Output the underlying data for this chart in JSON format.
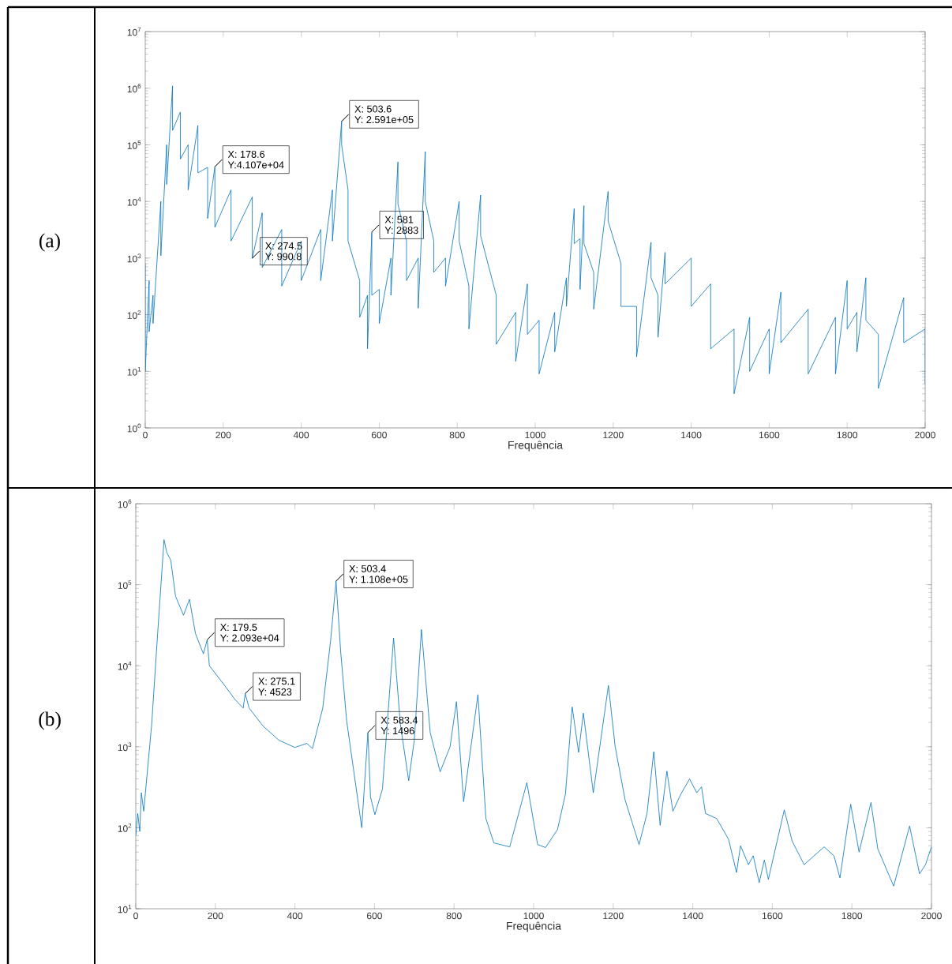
{
  "chart_data": [
    {
      "type": "line",
      "title": "(a)",
      "xlabel": "Frequência",
      "log": "y",
      "marker": "none",
      "xlim": [
        0,
        2000
      ],
      "ylim": [
        1,
        10000000
      ],
      "xticks": [
        0,
        200,
        400,
        600,
        800,
        1000,
        1200,
        1400,
        1600,
        1800,
        2000
      ],
      "yticks": [
        {
          "value": 1,
          "label": "10$^{0}$"
        },
        {
          "value": 10,
          "label": "10$^{1}$"
        },
        {
          "value": 100,
          "label": "10$^{2}$"
        },
        {
          "value": 1000,
          "label": "10$^{3}$"
        },
        {
          "value": 10000,
          "label": "10$^{4}$"
        },
        {
          "value": 100000,
          "label": "10$^{5}$"
        },
        {
          "value": 1000000,
          "label": "10$^{6}$"
        },
        {
          "value": 10000000,
          "label": "10$^{7}$"
        }
      ],
      "x": [
        0,
        0,
        10,
        10,
        20,
        20,
        40,
        40,
        55,
        55,
        70,
        70,
        90,
        90,
        110,
        110,
        135,
        135,
        160,
        160,
        178.6,
        178.6,
        220,
        220,
        274.5,
        274.5,
        300,
        300,
        350,
        350,
        400,
        400,
        450,
        450,
        480,
        480,
        503.6,
        503.6,
        520,
        520,
        550,
        550,
        570,
        570,
        581,
        581,
        600,
        600,
        630,
        630,
        648,
        648,
        670,
        670,
        700,
        700,
        718,
        718,
        740,
        740,
        770,
        770,
        805,
        805,
        830,
        830,
        860,
        860,
        900,
        900,
        950,
        950,
        980,
        980,
        1010,
        1010,
        1050,
        1050,
        1080,
        1080,
        1100,
        1100,
        1115,
        1115,
        1125,
        1125,
        1150,
        1150,
        1187,
        1187,
        1220,
        1220,
        1260,
        1260,
        1297,
        1297,
        1315,
        1315,
        1333,
        1333,
        1400,
        1400,
        1450,
        1450,
        1510,
        1510,
        1550,
        1550,
        1600,
        1600,
        1630,
        1630,
        1700,
        1700,
        1770,
        1770,
        1800,
        1800,
        1825,
        1825,
        1848,
        1848,
        1880,
        1880,
        1945,
        1945,
        2000,
        2000
      ],
      "series": [
        {
          "color": "#0072bd",
          "values": [
            800,
            10,
            400,
            50,
            220,
            70,
            10000,
            1100,
            100000,
            20000,
            1100000,
            180000,
            380000,
            56000,
            100000,
            16000,
            220000,
            32000,
            40000,
            5000,
            41070,
            3500,
            16000,
            2000,
            12000,
            990.8,
            6300,
            680,
            3200,
            320,
            2000,
            400,
            3200,
            400,
            16000,
            2000,
            259100,
            100000,
            16000,
            2000,
            400,
            90,
            220,
            25,
            2883,
            220,
            280,
            70,
            1000,
            220,
            50000,
            9000,
            2000,
            400,
            1000,
            130,
            76000,
            10000,
            2000,
            560,
            1000,
            320,
            10000,
            2000,
            320,
            56,
            13000,
            2500,
            220,
            30,
            110,
            15,
            350,
            45,
            80,
            9,
            110,
            22,
            450,
            140,
            7500,
            1800,
            2200,
            280,
            8400,
            1800,
            560,
            125,
            15000,
            4500,
            800,
            140,
            140,
            18,
            1900,
            450,
            220,
            40,
            1260,
            350,
            1000,
            140,
            350,
            25,
            56,
            4,
            90,
            10,
            56,
            9,
            250,
            32,
            125,
            9,
            90,
            9,
            400,
            56,
            110,
            22,
            450,
            80,
            45,
            5,
            200,
            32,
            56,
            6
          ]
        }
      ],
      "annotations": [
        {
          "text": "X: 178.6",
          "x": 178.6,
          "y": 41070
        },
        {
          "text": "Y:4.107e+04",
          "x": 178.6,
          "y": 41070
        },
        {
          "text": "X: 274.5",
          "x": 274.5,
          "y": 990.8
        },
        {
          "text": "Y: 990.8",
          "x": 274.5,
          "y": 990.8
        },
        {
          "text": "X: 503.6",
          "x": 503.6,
          "y": 259100
        },
        {
          "text": "Y: 2.591e+05",
          "x": 503.6,
          "y": 259100
        },
        {
          "text": "X: 581",
          "x": 581,
          "y": 2883
        },
        {
          "text": "Y: 2883",
          "x": 581,
          "y": 2883
        }
      ]
    },
    {
      "type": "line",
      "title": "(b)",
      "xlabel": "Frequência",
      "log": "y",
      "marker": "none",
      "xlim": [
        0,
        2000
      ],
      "ylim": [
        10,
        1000000
      ],
      "xticks": [
        0,
        200,
        400,
        600,
        800,
        1000,
        1200,
        1400,
        1600,
        1800,
        2000
      ],
      "yticks": [
        {
          "value": 10,
          "label": "10$^{1}$"
        },
        {
          "value": 100,
          "label": "10$^{2}$"
        },
        {
          "value": 1000,
          "label": "10$^{3}$"
        },
        {
          "value": 10000,
          "label": "10$^{4}$"
        },
        {
          "value": 100000,
          "label": "10$^{5}$"
        },
        {
          "value": 1000000,
          "label": "10$^{6}$"
        }
      ],
      "x": [
        0,
        5,
        10,
        14,
        20,
        40,
        55,
        71,
        78,
        88,
        100,
        120,
        135,
        150,
        170,
        179.5,
        185,
        220,
        250,
        270,
        275.1,
        285,
        320,
        360,
        400,
        430,
        444,
        470,
        490,
        503.4,
        515,
        530,
        568,
        583.4,
        590,
        601,
        620,
        648,
        665,
        686,
        700,
        718,
        740,
        765,
        790,
        806,
        824,
        860,
        880,
        900,
        940,
        983,
        1010,
        1030,
        1060,
        1080,
        1097,
        1113,
        1125,
        1150,
        1188,
        1205,
        1230,
        1265,
        1285,
        1302,
        1318,
        1335,
        1350,
        1370,
        1392,
        1410,
        1422,
        1432,
        1460,
        1490,
        1510,
        1520,
        1540,
        1552,
        1567,
        1580,
        1590,
        1630,
        1650,
        1680,
        1730,
        1755,
        1770,
        1797,
        1818,
        1848,
        1865,
        1905,
        1945,
        1970,
        1985,
        2000
      ],
      "series": [
        {
          "color": "#0072bd",
          "values": [
            80,
            150,
            90,
            270,
            160,
            1900,
            25000,
            360000,
            250000,
            200000,
            72000,
            42000,
            66000,
            25000,
            14000,
            20930,
            10000,
            6000,
            3800,
            3000,
            4523,
            3000,
            1800,
            1200,
            980,
            1100,
            950,
            3000,
            21000,
            110800,
            15000,
            2100,
            100,
            1496,
            240,
            145,
            300,
            22000,
            1900,
            380,
            1200,
            28000,
            1500,
            490,
            1000,
            3600,
            210,
            4400,
            130,
            65,
            58,
            360,
            62,
            57,
            95,
            260,
            3100,
            850,
            2600,
            270,
            5700,
            1000,
            220,
            62,
            150,
            870,
            107,
            500,
            160,
            260,
            400,
            270,
            320,
            150,
            130,
            72,
            28,
            60,
            35,
            45,
            21,
            40,
            23,
            166,
            68,
            35,
            58,
            45,
            24,
            195,
            50,
            205,
            55,
            19,
            105,
            27,
            35,
            58
          ]
        }
      ],
      "annotations": [
        {
          "text": "X: 179.5",
          "x": 179.5,
          "y": 20930
        },
        {
          "text": "Y: 2.093e+04",
          "x": 179.5,
          "y": 20930
        },
        {
          "text": "X: 275.1",
          "x": 275.1,
          "y": 4523
        },
        {
          "text": "Y: 4523",
          "x": 275.1,
          "y": 4523
        },
        {
          "text": "X: 503.4",
          "x": 503.4,
          "y": 110800
        },
        {
          "text": "Y: 1.108e+05",
          "x": 503.4,
          "y": 110800
        },
        {
          "text": "X: 583.4",
          "x": 583.4,
          "y": 1496
        },
        {
          "text": "Y: 1496",
          "x": 583.4,
          "y": 1496
        }
      ]
    }
  ]
}
